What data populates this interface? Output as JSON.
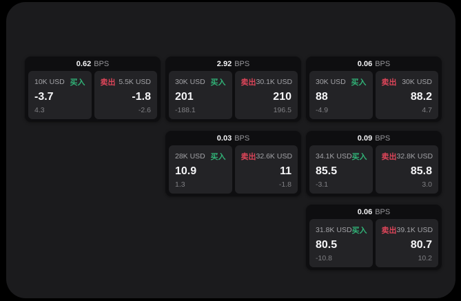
{
  "page": {
    "background": "#000000",
    "surface": "#1b1b1d",
    "card_bg": "#0e0e10",
    "pane_bg": "#232326"
  },
  "labels": {
    "buy_label": "买入",
    "sell_label": "卖出",
    "unit": "BPS"
  },
  "colors": {
    "buy": "#31b277",
    "sell": "#dc4559"
  },
  "cards": [
    {
      "row": 1,
      "col": 1,
      "spread": "0.62",
      "buy_amount": "10K USD",
      "buy_price": "-3.7",
      "buy_delta": "4.3",
      "sell_amount": "5.5K USD",
      "sell_price": "-1.8",
      "sell_delta": "-2.6"
    },
    {
      "row": 1,
      "col": 2,
      "spread": "2.92",
      "buy_amount": "30K USD",
      "buy_price": "201",
      "buy_delta": "-188.1",
      "sell_amount": "30.1K USD",
      "sell_price": "210",
      "sell_delta": "196.5"
    },
    {
      "row": 1,
      "col": 3,
      "spread": "0.06",
      "buy_amount": "30K USD",
      "buy_price": "88",
      "buy_delta": "-4.9",
      "sell_amount": "30K USD",
      "sell_price": "88.2",
      "sell_delta": "4.7"
    },
    {
      "row": 2,
      "col": 2,
      "spread": "0.03",
      "buy_amount": "28K USD",
      "buy_price": "10.9",
      "buy_delta": "1.3",
      "sell_amount": "32.6K USD",
      "sell_price": "11",
      "sell_delta": "-1.8"
    },
    {
      "row": 2,
      "col": 3,
      "spread": "0.09",
      "buy_amount": "34.1K USD",
      "buy_price": "85.5",
      "buy_delta": "-3.1",
      "sell_amount": "32.8K USD",
      "sell_price": "85.8",
      "sell_delta": "3.0"
    },
    {
      "row": 3,
      "col": 3,
      "spread": "0.06",
      "buy_amount": "31.8K USD",
      "buy_price": "80.5",
      "buy_delta": "-10.8",
      "sell_amount": "39.1K USD",
      "sell_price": "80.7",
      "sell_delta": "10.2"
    }
  ]
}
